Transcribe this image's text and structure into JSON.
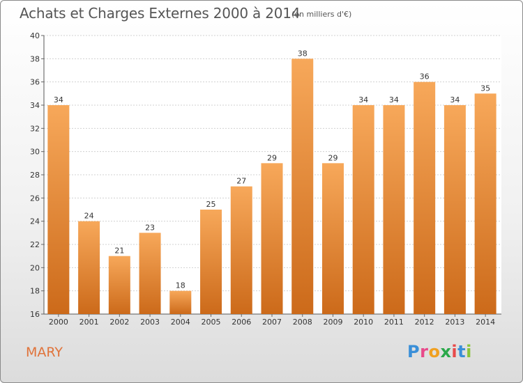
{
  "header": {
    "title": "Achats et Charges Externes 2000 à 2014",
    "subtitle": "(en milliers d'€)"
  },
  "footer": {
    "commune": "MARY",
    "logo_letters": [
      "P",
      "r",
      "o",
      "x",
      "i",
      "t",
      "i"
    ]
  },
  "colors": {
    "bar_top": "#f7a85a",
    "bar_bottom": "#cc6a1a",
    "commune_text": "#e0733a",
    "logo_letters": [
      "#3a8fd8",
      "#e84a8a",
      "#f0a020",
      "#2aa84a",
      "#e84a4a",
      "#3a8fd8",
      "#8ac43a"
    ]
  },
  "chart_data": {
    "type": "bar",
    "title": "Achats et Charges Externes 2000 à 2014",
    "subtitle": "(en milliers d'€)",
    "categories": [
      "2000",
      "2001",
      "2002",
      "2003",
      "2004",
      "2005",
      "2006",
      "2007",
      "2008",
      "2009",
      "2010",
      "2011",
      "2012",
      "2013",
      "2014"
    ],
    "values": [
      34,
      24,
      21,
      23,
      18,
      25,
      27,
      29,
      38,
      29,
      34,
      34,
      36,
      34,
      35
    ],
    "ylim": [
      16,
      40
    ],
    "yticks": [
      16,
      18,
      20,
      22,
      24,
      26,
      28,
      30,
      32,
      34,
      36,
      38,
      40
    ],
    "grid": true,
    "legend": "none"
  }
}
